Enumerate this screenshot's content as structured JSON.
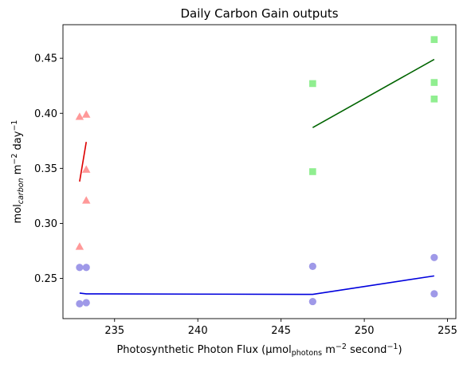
{
  "chart_data": {
    "type": "scatter",
    "title": "Daily Carbon Gain outputs",
    "xlabel": {
      "prefix": "Photosynthetic Photon Flux (µmol",
      "sub": "photons",
      "mid": " m",
      "sup1": "−2",
      "mid2": " second",
      "sup2": "−1",
      "suffix": ")"
    },
    "ylabel": {
      "prefix": "mol",
      "sub": "carbon",
      "mid": " m",
      "sup1": "−2",
      "mid2": " day",
      "sup2": "−1"
    },
    "xlim": [
      231.9,
      255.5
    ],
    "ylim": [
      0.2135,
      0.4805
    ],
    "xticks": [
      235,
      240,
      245,
      250,
      255
    ],
    "yticks": [
      0.25,
      0.3,
      0.35,
      0.4,
      0.45
    ],
    "xtick_labels": [
      "235",
      "240",
      "245",
      "250",
      "255"
    ],
    "ytick_labels": [
      "0.25",
      "0.30",
      "0.35",
      "0.40",
      "0.45"
    ],
    "grid": false,
    "series": [
      {
        "marker": "triangle",
        "color": "#ff9999",
        "line_color": "#dd0000",
        "points": [
          {
            "x": 232.9,
            "y": 0.397
          },
          {
            "x": 233.3,
            "y": 0.399
          },
          {
            "x": 233.3,
            "y": 0.349
          },
          {
            "x": 233.3,
            "y": 0.321
          },
          {
            "x": 232.9,
            "y": 0.279
          }
        ],
        "line": [
          {
            "x": 232.9,
            "y": 0.338
          },
          {
            "x": 233.3,
            "y": 0.374
          }
        ]
      },
      {
        "marker": "square",
        "color": "#90ee90",
        "line_color": "#006400",
        "points": [
          {
            "x": 254.2,
            "y": 0.467
          },
          {
            "x": 254.2,
            "y": 0.428
          },
          {
            "x": 254.2,
            "y": 0.413
          },
          {
            "x": 246.9,
            "y": 0.427
          },
          {
            "x": 246.9,
            "y": 0.347
          }
        ],
        "line": [
          {
            "x": 246.9,
            "y": 0.387
          },
          {
            "x": 254.2,
            "y": 0.449
          }
        ]
      },
      {
        "marker": "circle",
        "color": "#9f99e8",
        "line_color": "#0000dd",
        "points": [
          {
            "x": 232.9,
            "y": 0.26
          },
          {
            "x": 233.3,
            "y": 0.26
          },
          {
            "x": 232.9,
            "y": 0.227
          },
          {
            "x": 233.3,
            "y": 0.228
          },
          {
            "x": 246.9,
            "y": 0.261
          },
          {
            "x": 246.9,
            "y": 0.229
          },
          {
            "x": 254.2,
            "y": 0.269
          },
          {
            "x": 254.2,
            "y": 0.236
          }
        ],
        "line": [
          {
            "x": 232.9,
            "y": 0.2367
          },
          {
            "x": 233.3,
            "y": 0.236
          },
          {
            "x": 246.9,
            "y": 0.2355
          },
          {
            "x": 254.2,
            "y": 0.2523
          }
        ]
      }
    ]
  }
}
